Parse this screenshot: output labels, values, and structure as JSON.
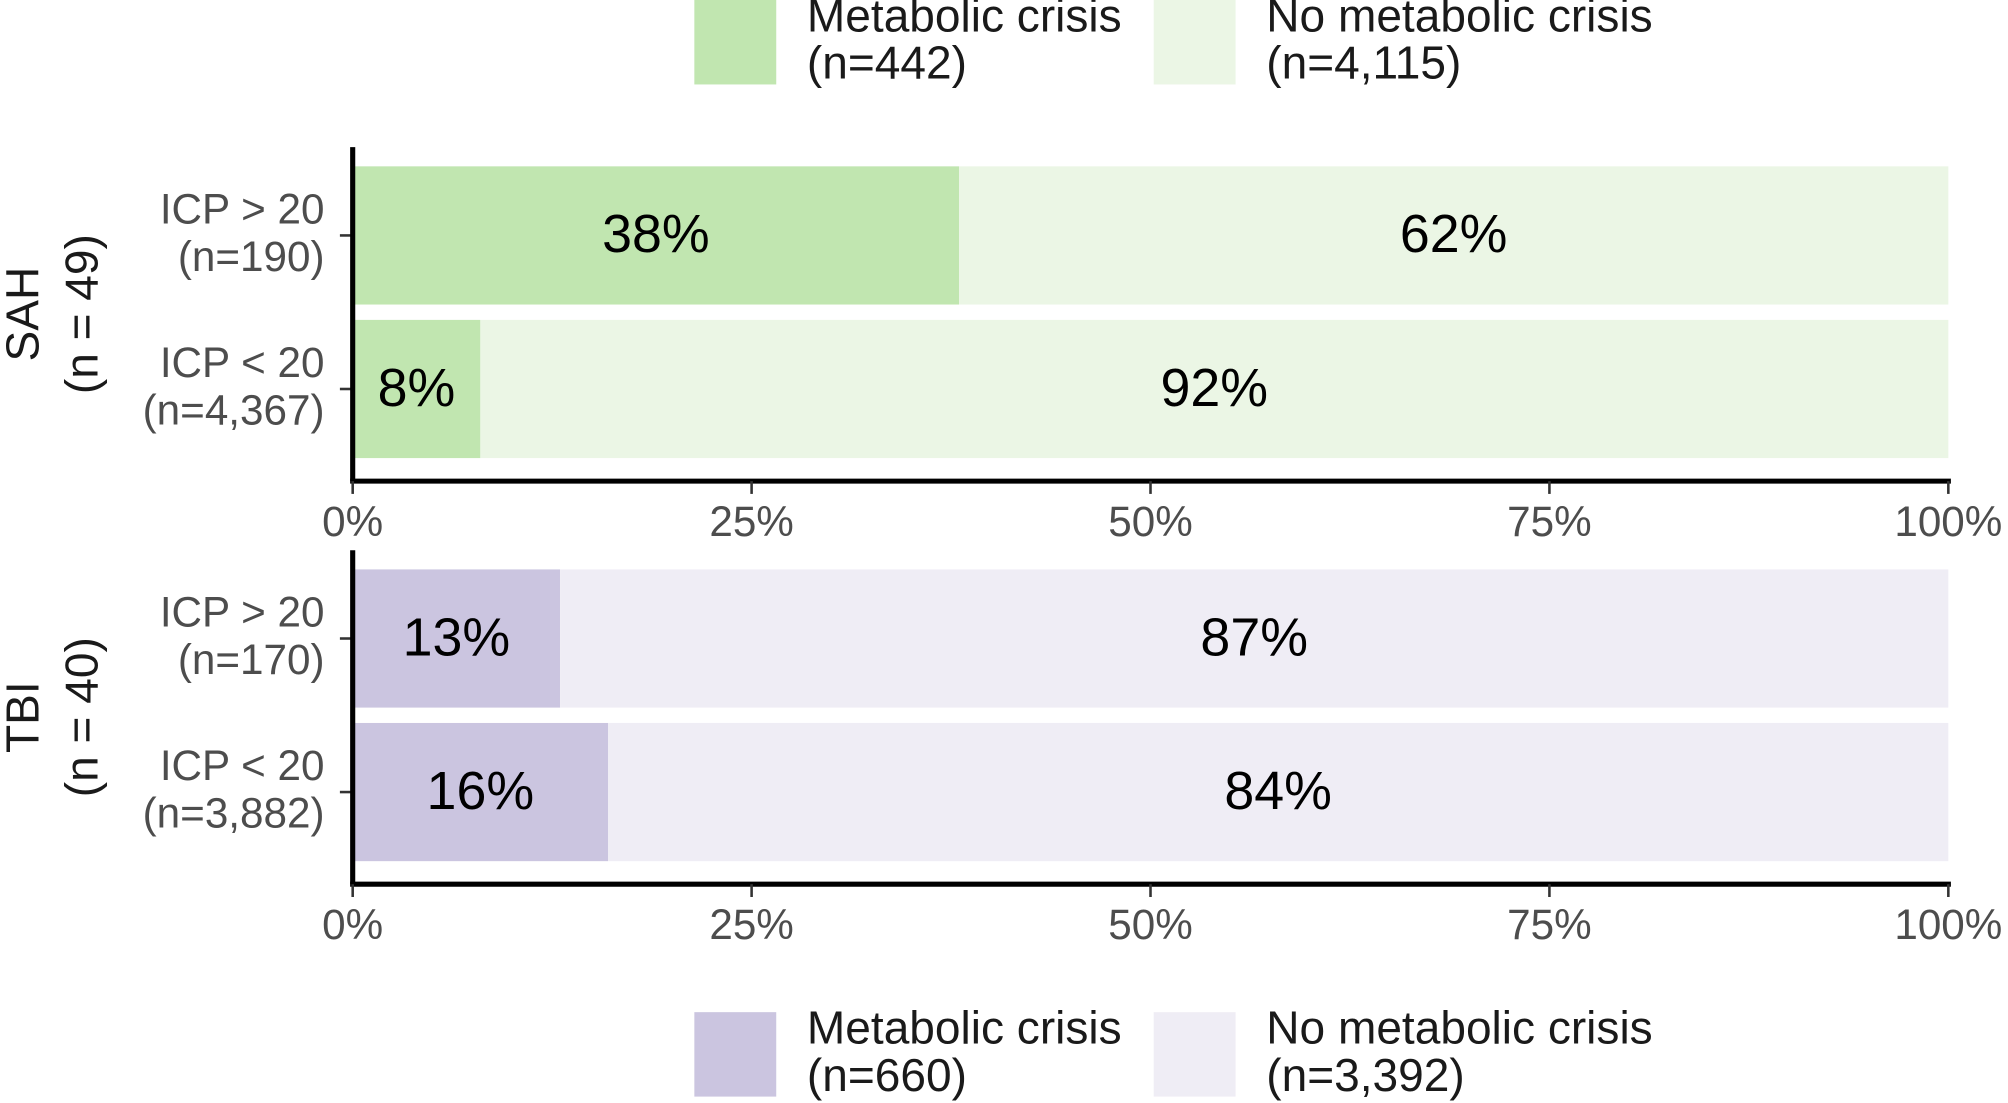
{
  "chart_data": [
    {
      "type": "bar",
      "orientation": "horizontal",
      "stacked": true,
      "facet_label": "SAH",
      "facet_count": "(n = 49)",
      "categories": [
        "ICP > 20",
        "ICP < 20"
      ],
      "category_counts": [
        "(n=190)",
        "(n=4,367)"
      ],
      "series": [
        {
          "name": "Metabolic crisis",
          "count_label": "(n=442)",
          "color": "#c1e6b0",
          "values": [
            38,
            8
          ],
          "value_labels": [
            "38%",
            "8%"
          ]
        },
        {
          "name": "No metabolic crisis",
          "count_label": "(n=4,115)",
          "color": "#ebf6e5",
          "values": [
            62,
            92
          ],
          "value_labels": [
            "62%",
            "92%"
          ]
        }
      ],
      "xlim": [
        0,
        100
      ],
      "xticks": [
        {
          "value": 0,
          "label": "0%"
        },
        {
          "value": 25,
          "label": "25%"
        },
        {
          "value": 50,
          "label": "50%"
        },
        {
          "value": 75,
          "label": "75%"
        },
        {
          "value": 100,
          "label": "100%"
        }
      ],
      "legend": "top"
    },
    {
      "type": "bar",
      "orientation": "horizontal",
      "stacked": true,
      "facet_label": "TBI",
      "facet_count": "(n = 40)",
      "categories": [
        "ICP > 20",
        "ICP < 20"
      ],
      "category_counts": [
        "(n=170)",
        "(n=3,882)"
      ],
      "series": [
        {
          "name": "Metabolic crisis",
          "count_label": "(n=660)",
          "color": "#cbc5e0",
          "values": [
            13,
            16
          ],
          "value_labels": [
            "13%",
            "16%"
          ]
        },
        {
          "name": "No metabolic crisis",
          "count_label": "(n=3,392)",
          "color": "#efedf5",
          "values": [
            87,
            84
          ],
          "value_labels": [
            "87%",
            "84%"
          ]
        }
      ],
      "xlim": [
        0,
        100
      ],
      "xticks": [
        {
          "value": 0,
          "label": "0%"
        },
        {
          "value": 25,
          "label": "25%"
        },
        {
          "value": 50,
          "label": "50%"
        },
        {
          "value": 75,
          "label": "75%"
        },
        {
          "value": 100,
          "label": "100%"
        }
      ],
      "legend": "bottom"
    }
  ]
}
